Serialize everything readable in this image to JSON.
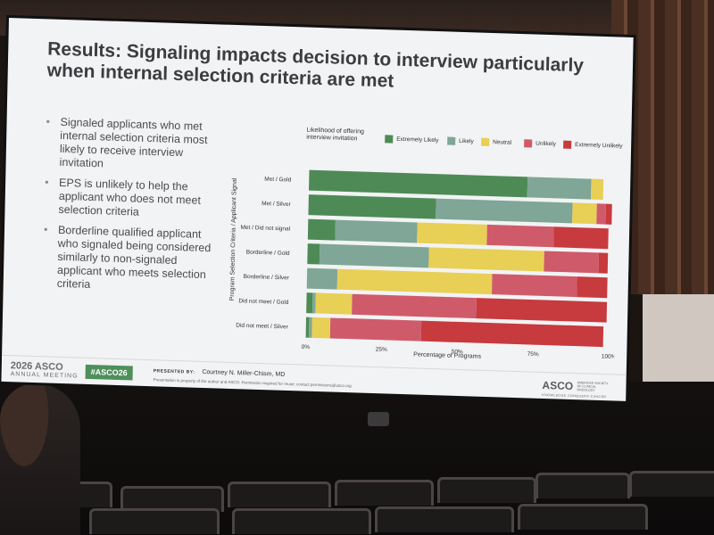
{
  "slide": {
    "title": "Results: Signaling impacts decision to interview particularly when internal selection criteria are met",
    "bullets": [
      "Signaled applicants who met internal selection criteria most likely to receive interview invitation",
      "EPS is unlikely to help the applicant who does not meet selection criteria",
      "Borderline qualified applicant who signaled being considered similarly to non-signaled applicant who meets selection criteria"
    ],
    "footer": {
      "meeting_year": "2026 ASCO",
      "meeting_name": "ANNUAL MEETING",
      "hashtag": "#ASCO26",
      "presented_by_label": "PRESENTED BY:",
      "presenter": "Courtney N. Miller-Chism, MD",
      "disclaimer": "Presentation is property of the author and ASCO. Permission required for reuse; contact permissions@asco.org",
      "org_brand": "ASCO",
      "org_name": "AMERICAN SOCIETY OF CLINICAL ONCOLOGY",
      "org_tagline": "KNOWLEDGE CONQUERS CANCER"
    }
  },
  "chart_data": {
    "type": "bar",
    "orientation": "horizontal",
    "stacked": true,
    "legend_title": "Likelihood of offering interview invitation",
    "legend_position": "top",
    "ylabel": "Program Selection Criteria / Applicant Signal",
    "xlabel": "Percentage of Programs",
    "xlim": [
      0,
      100
    ],
    "xticks": [
      "0%",
      "25%",
      "50%",
      "75%",
      "100%"
    ],
    "categories": [
      "Met / Gold",
      "Met / Silver",
      "Met / Did not signal",
      "Borderline / Gold",
      "Borderline / Silver",
      "Did not meet / Gold",
      "Did not meet / Silver"
    ],
    "series": [
      {
        "name": "Extremely Likely",
        "color": "#4e8a55",
        "values": [
          72,
          42,
          9,
          4,
          0,
          2,
          1
        ]
      },
      {
        "name": "Likely",
        "color": "#7fa696",
        "values": [
          21,
          45,
          27,
          36,
          10,
          1,
          1
        ]
      },
      {
        "name": "Neutral",
        "color": "#e8cf55",
        "values": [
          4,
          8,
          23,
          38,
          51,
          12,
          6
        ]
      },
      {
        "name": "Unlikely",
        "color": "#cf5b6a",
        "values": [
          0,
          3,
          22,
          18,
          28,
          41,
          30
        ]
      },
      {
        "name": "Extremely Unlikely",
        "color": "#c73a3e",
        "values": [
          0,
          2,
          18,
          3,
          10,
          43,
          60
        ]
      }
    ]
  }
}
